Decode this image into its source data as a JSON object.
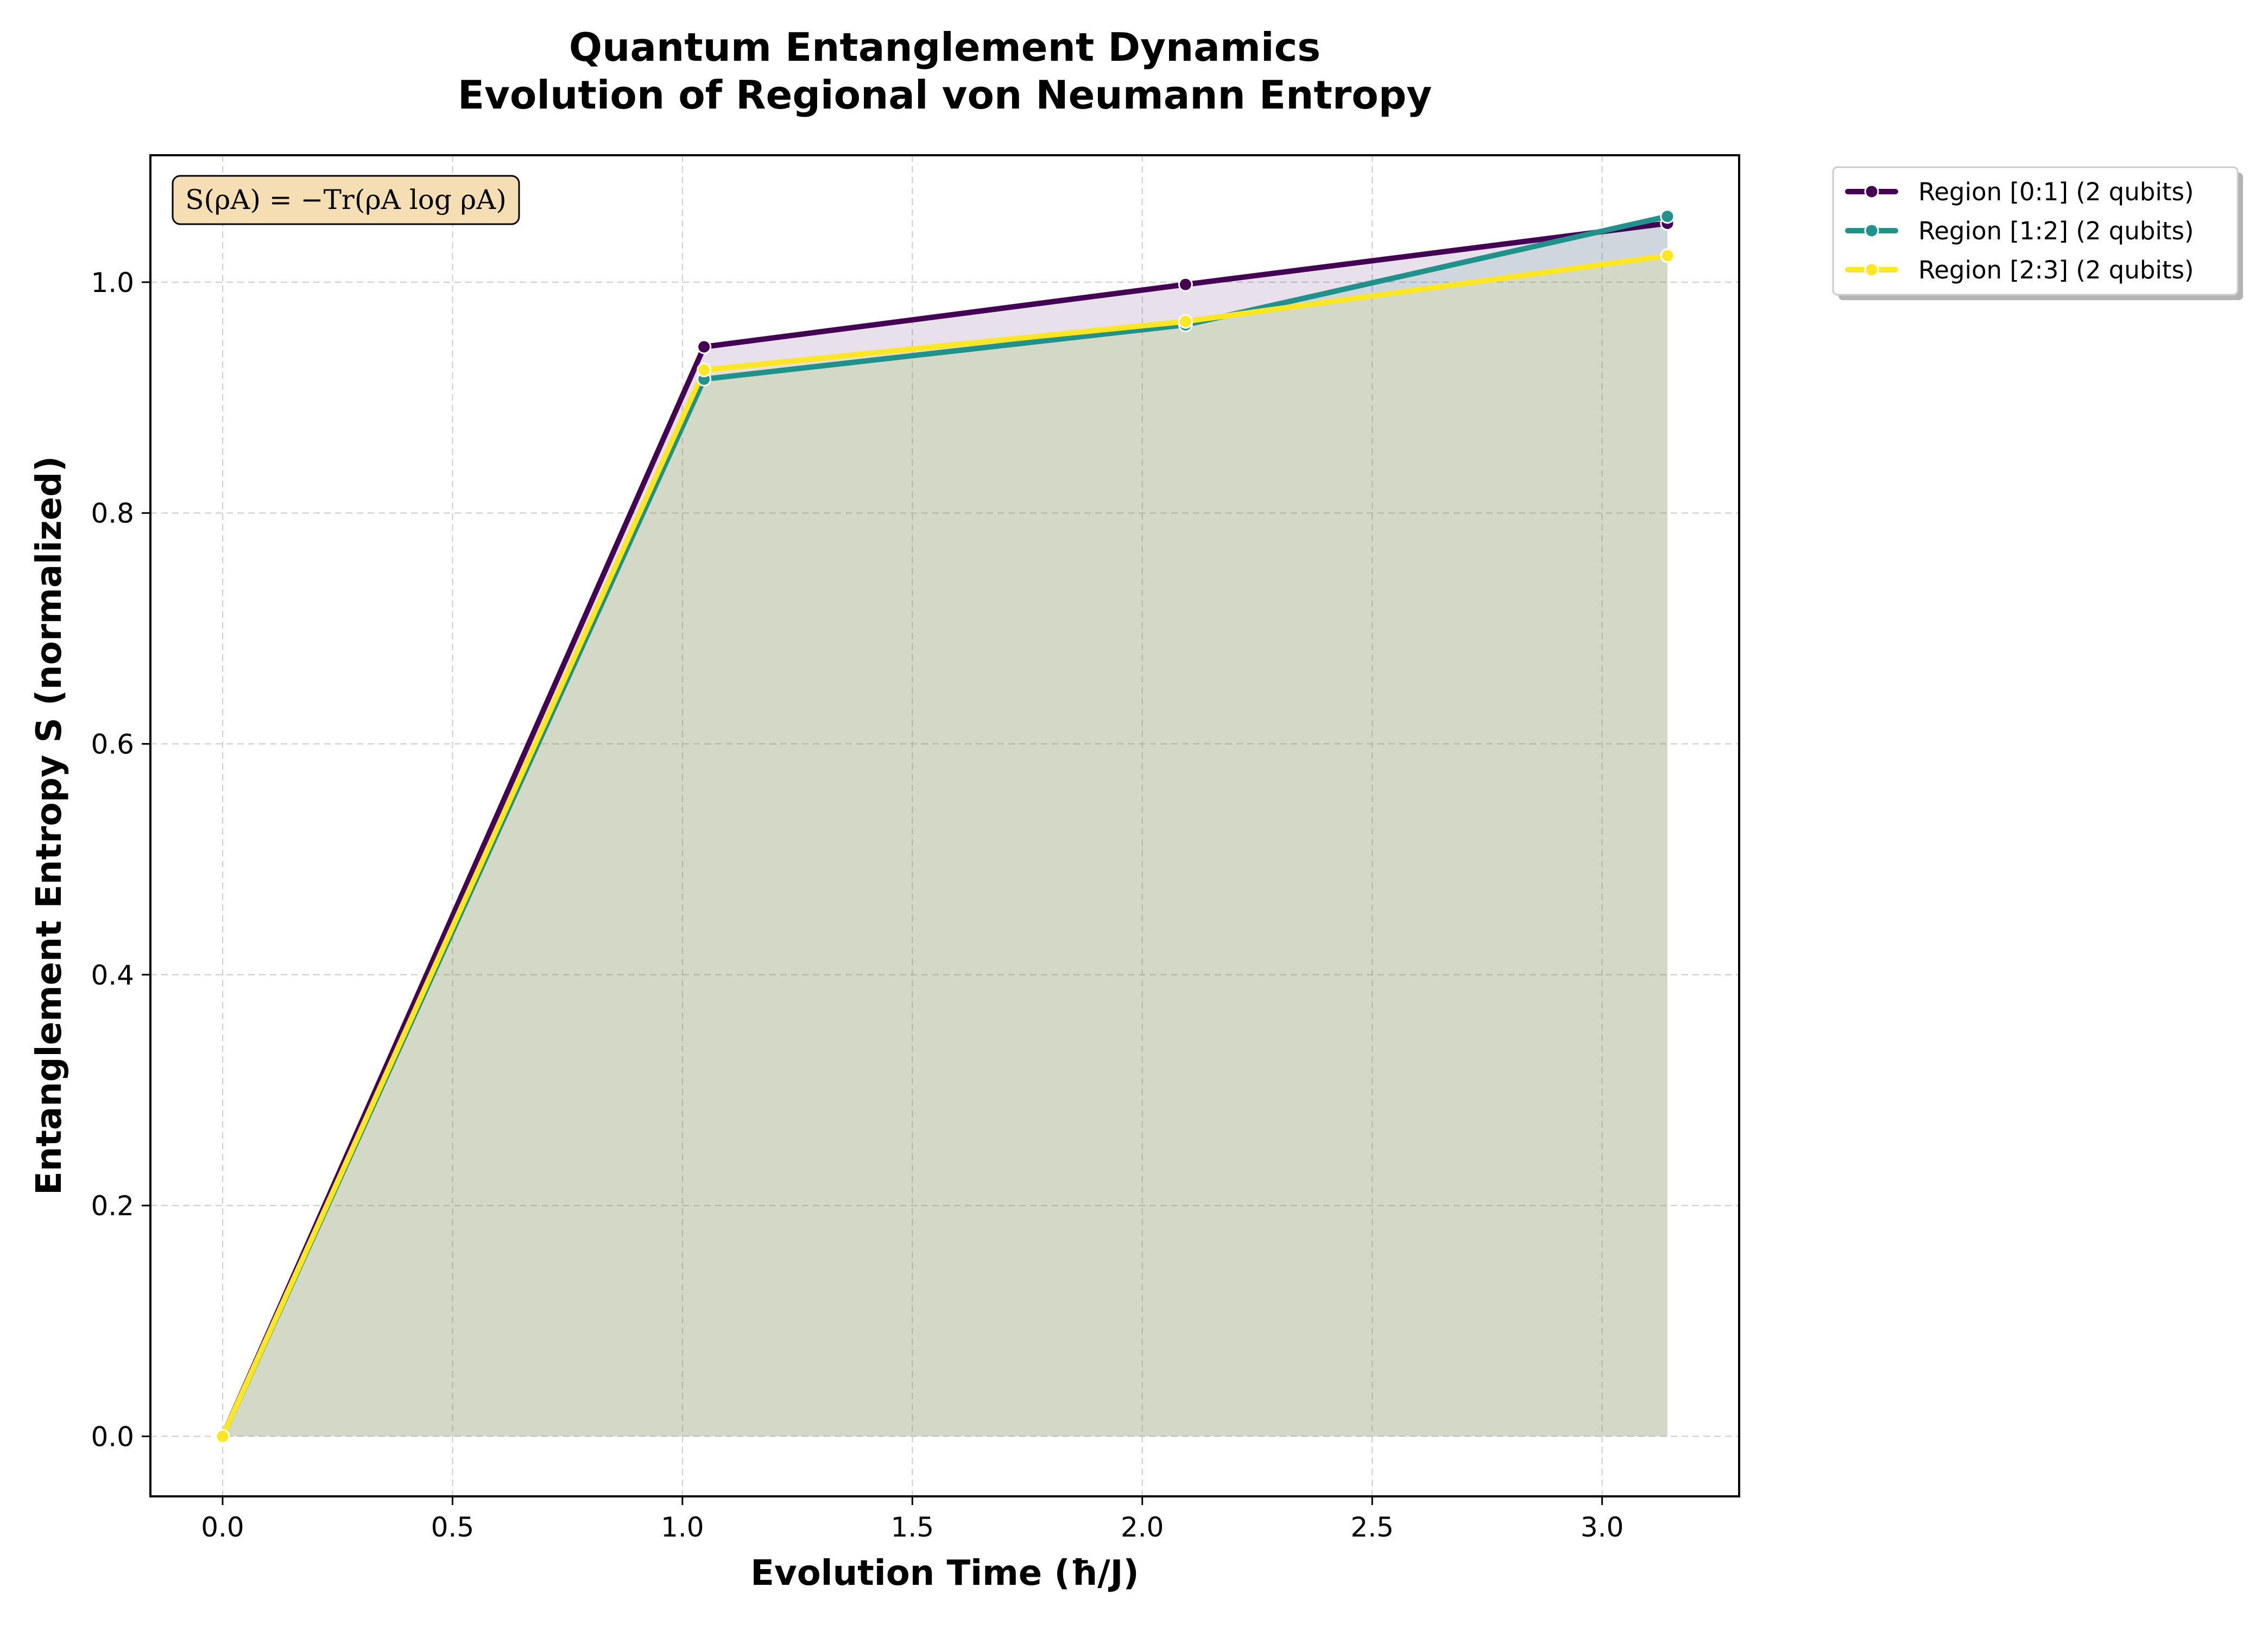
{
  "chart_data": {
    "type": "line",
    "title": "Quantum Entanglement Dynamics",
    "subtitle": "Evolution of Regional von Neumann Entropy",
    "xlabel": "Evolution Time (ħ/J)",
    "ylabel": "Entanglement Entropy S (normalized)",
    "xlim": [
      -0.157,
      3.298
    ],
    "ylim": [
      -0.052,
      1.11
    ],
    "xticks": [
      0.0,
      0.5,
      1.0,
      1.5,
      2.0,
      2.5,
      3.0
    ],
    "xtick_labels": [
      "0.0",
      "0.5",
      "1.0",
      "1.5",
      "2.0",
      "2.5",
      "3.0"
    ],
    "yticks": [
      0.0,
      0.2,
      0.4,
      0.6,
      0.8,
      1.0
    ],
    "ytick_labels": [
      "0.0",
      "0.2",
      "0.4",
      "0.6",
      "0.8",
      "1.0"
    ],
    "grid": true,
    "legend_position": "outside-top-right",
    "annotation": "S(ρA) = −Tr(ρA log ρA)",
    "x": [
      0.0,
      1.047,
      2.094,
      3.142
    ],
    "series": [
      {
        "name": "Region [0:1] (2 qubits)",
        "color": "#440154",
        "values": [
          0.0,
          0.944,
          0.998,
          1.051
        ],
        "fill_opacity": 0.12
      },
      {
        "name": "Region [1:2] (2 qubits)",
        "color": "#21918c",
        "values": [
          0.0,
          0.916,
          0.963,
          1.057
        ],
        "fill_opacity": 0.12
      },
      {
        "name": "Region [2:3] (2 qubits)",
        "color": "#fde725",
        "values": [
          0.0,
          0.924,
          0.966,
          1.023
        ],
        "fill_opacity": 0.12
      }
    ]
  }
}
